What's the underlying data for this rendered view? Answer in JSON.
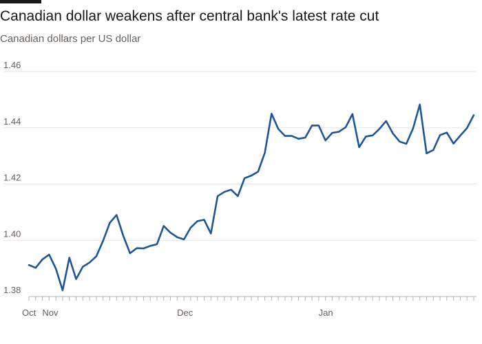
{
  "header": {
    "title": "Canadian dollar weakens after central bank's latest rate cut",
    "subtitle": "Canadian dollars per US dollar"
  },
  "colors": {
    "line": "#1d5698",
    "grid": "#e9e6e2",
    "axis": "#66605c",
    "tick": "#b8b3ad",
    "accent_bar": "#1a1a1a"
  },
  "chart_data": {
    "type": "line",
    "title": "Canadian dollar weakens after central bank's latest rate cut",
    "subtitle": "Canadian dollars per US dollar",
    "xlabel": "",
    "ylabel": "",
    "ylim": [
      1.38,
      1.46
    ],
    "y_ticks": [
      1.46,
      1.44,
      1.42,
      1.4,
      1.38
    ],
    "y_tick_labels": [
      "1.46",
      "1.44",
      "1.42",
      "1.40",
      "1.38"
    ],
    "x_tick_labels": [
      {
        "label": "Oct",
        "index": 0
      },
      {
        "label": "Nov",
        "index": 3
      },
      {
        "label": "Dec",
        "index": 23
      },
      {
        "label": "Jan",
        "index": 44
      }
    ],
    "grid": true,
    "legend": "none",
    "series": [
      {
        "values": [
          1.3912,
          1.3902,
          1.3932,
          1.3949,
          1.3899,
          1.3822,
          1.3938,
          1.3862,
          1.3906,
          1.3921,
          1.3943,
          1.3998,
          1.4062,
          1.409,
          1.4016,
          1.3954,
          1.3972,
          1.3971,
          1.398,
          1.3986,
          1.4051,
          1.4027,
          1.4011,
          1.4003,
          1.4045,
          1.4068,
          1.4073,
          1.4024,
          1.4157,
          1.4172,
          1.418,
          1.4157,
          1.4221,
          1.423,
          1.4244,
          1.4311,
          1.445,
          1.4396,
          1.4371,
          1.4371,
          1.4361,
          1.4365,
          1.4408,
          1.4408,
          1.4355,
          1.4382,
          1.4386,
          1.4402,
          1.4449,
          1.4331,
          1.4369,
          1.4373,
          1.4396,
          1.4424,
          1.438,
          1.4351,
          1.4343,
          1.4398,
          1.4483,
          1.4309,
          1.4321,
          1.4374,
          1.4383,
          1.4344,
          1.4372,
          1.4399,
          1.4445
        ]
      }
    ]
  }
}
